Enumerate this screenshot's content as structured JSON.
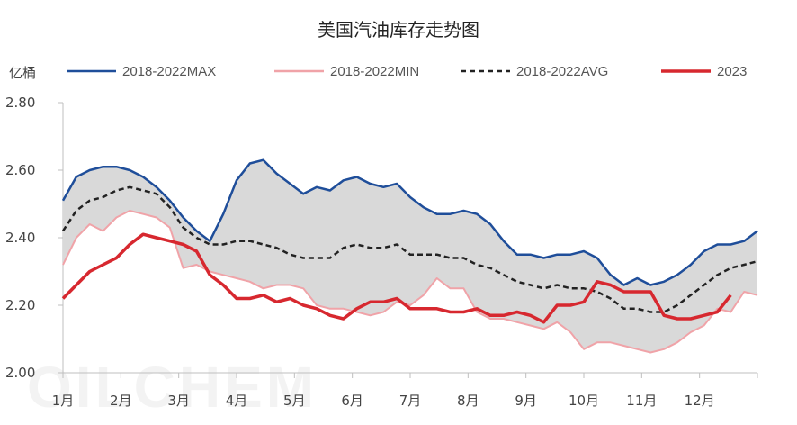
{
  "watermark": "OILCHEM",
  "chart_data": {
    "type": "line",
    "title": "美国汽油库存走势图",
    "ylabel": "亿桶",
    "xlabel": "",
    "ylim": [
      2.0,
      2.8
    ],
    "yticks": [
      "2.00",
      "2.20",
      "2.40",
      "2.60",
      "2.80"
    ],
    "ytick_values": [
      2.0,
      2.2,
      2.4,
      2.6,
      2.8
    ],
    "x_tick_labels": [
      "1月",
      "2月",
      "3月",
      "4月",
      "5月",
      "6月",
      "7月",
      "8月",
      "9月",
      "10月",
      "11月",
      "12月"
    ],
    "weeks": 53,
    "grid": false,
    "legend_position": "top",
    "band": {
      "upper_series": 0,
      "lower_series": 1,
      "color": "#d9d9d9"
    },
    "series": [
      {
        "name": "2018-2022MAX",
        "color": "#1f4e9a",
        "style": "solid",
        "values": [
          2.51,
          2.58,
          2.6,
          2.61,
          2.61,
          2.6,
          2.58,
          2.55,
          2.51,
          2.46,
          2.42,
          2.39,
          2.47,
          2.57,
          2.62,
          2.63,
          2.59,
          2.56,
          2.53,
          2.55,
          2.54,
          2.57,
          2.58,
          2.56,
          2.55,
          2.56,
          2.52,
          2.49,
          2.47,
          2.47,
          2.48,
          2.47,
          2.44,
          2.39,
          2.35,
          2.35,
          2.34,
          2.35,
          2.35,
          2.36,
          2.34,
          2.29,
          2.26,
          2.28,
          2.26,
          2.27,
          2.29,
          2.32,
          2.36,
          2.38,
          2.38,
          2.39,
          2.42
        ]
      },
      {
        "name": "2018-2022MIN",
        "color": "#f0a3a8",
        "style": "solid",
        "values": [
          2.32,
          2.4,
          2.44,
          2.42,
          2.46,
          2.48,
          2.47,
          2.46,
          2.43,
          2.31,
          2.32,
          2.3,
          2.29,
          2.28,
          2.27,
          2.25,
          2.26,
          2.26,
          2.25,
          2.2,
          2.19,
          2.19,
          2.18,
          2.17,
          2.18,
          2.21,
          2.2,
          2.23,
          2.28,
          2.25,
          2.25,
          2.18,
          2.16,
          2.16,
          2.15,
          2.14,
          2.13,
          2.15,
          2.12,
          2.07,
          2.09,
          2.09,
          2.08,
          2.07,
          2.06,
          2.07,
          2.09,
          2.12,
          2.14,
          2.19,
          2.18,
          2.24,
          2.23
        ]
      },
      {
        "name": "2018-2022AVG",
        "color": "#222222",
        "style": "dashed",
        "values": [
          2.42,
          2.48,
          2.51,
          2.52,
          2.54,
          2.55,
          2.54,
          2.53,
          2.49,
          2.43,
          2.4,
          2.38,
          2.38,
          2.39,
          2.39,
          2.38,
          2.37,
          2.35,
          2.34,
          2.34,
          2.34,
          2.37,
          2.38,
          2.37,
          2.37,
          2.38,
          2.35,
          2.35,
          2.35,
          2.34,
          2.34,
          2.32,
          2.31,
          2.29,
          2.27,
          2.26,
          2.25,
          2.26,
          2.25,
          2.25,
          2.24,
          2.22,
          2.19,
          2.19,
          2.18,
          2.18,
          2.2,
          2.23,
          2.26,
          2.29,
          2.31,
          2.32,
          2.33
        ]
      },
      {
        "name": "2023",
        "color": "#d7282f",
        "style": "solid",
        "values": [
          2.22,
          2.26,
          2.3,
          2.32,
          2.34,
          2.38,
          2.41,
          2.4,
          2.39,
          2.38,
          2.36,
          2.29,
          2.26,
          2.22,
          2.22,
          2.23,
          2.21,
          2.22,
          2.2,
          2.19,
          2.17,
          2.16,
          2.19,
          2.21,
          2.21,
          2.22,
          2.19,
          2.19,
          2.19,
          2.18,
          2.18,
          2.19,
          2.17,
          2.17,
          2.18,
          2.17,
          2.15,
          2.2,
          2.2,
          2.21,
          2.27,
          2.26,
          2.24,
          2.24,
          2.24,
          2.17,
          2.16,
          2.16,
          2.17,
          2.18,
          2.23
        ]
      }
    ]
  }
}
